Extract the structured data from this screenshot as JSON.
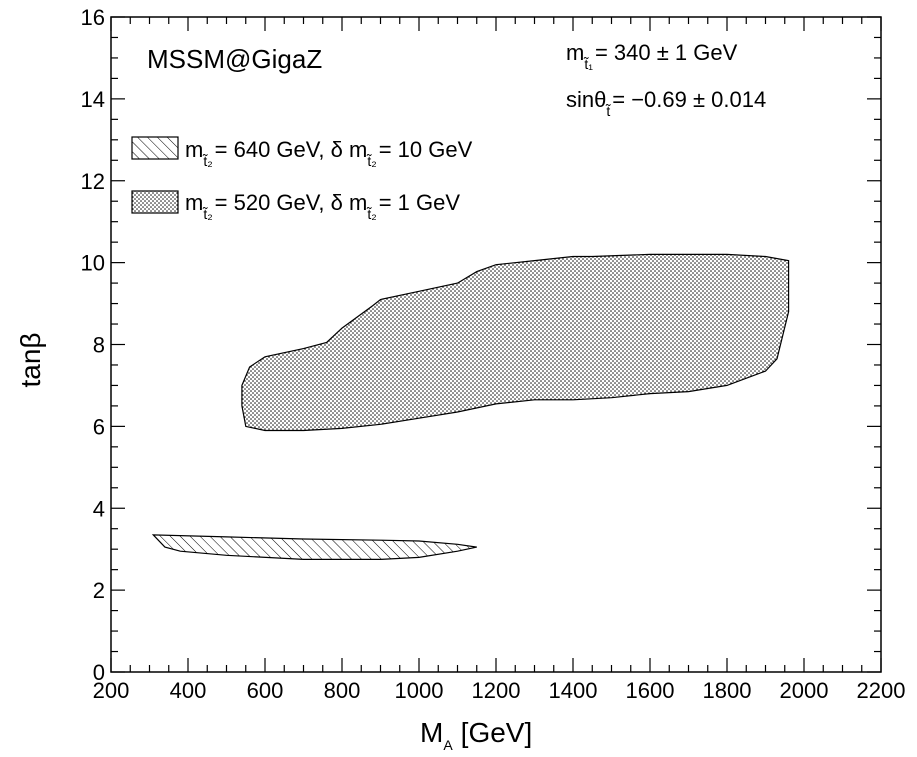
{
  "chart_data": {
    "type": "area",
    "title": "",
    "xlabel": "M",
    "xlabel_sub": "A",
    "xlabel_unit": "[GeV]",
    "ylabel": "tanβ",
    "xlim": [
      200,
      2200
    ],
    "ylim": [
      0,
      16
    ],
    "x_ticks": [
      200,
      400,
      600,
      800,
      1000,
      1200,
      1400,
      1600,
      1800,
      2000,
      2200
    ],
    "y_ticks": [
      0,
      2,
      4,
      6,
      8,
      10,
      12,
      14,
      16
    ],
    "x_tick_labels": [
      "200",
      "400",
      "600",
      "800",
      "1000",
      "1200",
      "1400",
      "1600",
      "1800",
      "2000",
      "2200"
    ],
    "y_tick_labels": [
      "0",
      "2",
      "4",
      "6",
      "8",
      "10",
      "12",
      "14",
      "16"
    ],
    "grid": false,
    "legend_position": "top-left",
    "annotations": {
      "scenario": "MSSM@GigaZ",
      "line1": {
        "pre": "m",
        "sub": "t̃₁",
        "post": "= 340 ± 1 GeV"
      },
      "line2": {
        "pre": "sinθ",
        "sub": "t̃",
        "post": "= −0.69 ± 0.014"
      }
    },
    "series": [
      {
        "pattern": "hatched",
        "legend": {
          "pre": "m",
          "sub": "t̃₂",
          "mid": "= 640 GeV, δ m",
          "sub2": "t̃₂",
          "post": "= 10 GeV"
        },
        "x": [
          310,
          340,
          380,
          500,
          700,
          900,
          1000,
          1100,
          1150,
          1150,
          1100,
          1000,
          900,
          700,
          500,
          310
        ],
        "y": [
          3.35,
          3.05,
          2.95,
          2.85,
          2.75,
          2.75,
          2.8,
          2.95,
          3.05,
          3.05,
          3.12,
          3.2,
          3.22,
          3.25,
          3.3,
          3.35
        ]
      },
      {
        "pattern": "dotted",
        "legend": {
          "pre": "m",
          "sub": "t̃₂",
          "mid": "= 520 GeV, δ m",
          "sub2": "t̃₂",
          "post": "= 1 GeV"
        },
        "x": [
          540,
          550,
          600,
          700,
          800,
          900,
          1000,
          1100,
          1200,
          1300,
          1400,
          1500,
          1600,
          1700,
          1800,
          1900,
          1930,
          1960,
          1960,
          1900,
          1800,
          1700,
          1600,
          1450,
          1400,
          1300,
          1200,
          1150,
          1100,
          1000,
          900,
          880,
          800,
          760,
          700,
          600,
          560,
          540
        ],
        "y": [
          6.5,
          6.0,
          5.9,
          5.9,
          5.95,
          6.05,
          6.2,
          6.35,
          6.55,
          6.65,
          6.65,
          6.7,
          6.8,
          6.85,
          7.0,
          7.35,
          7.65,
          8.8,
          10.05,
          10.15,
          10.2,
          10.2,
          10.2,
          10.15,
          10.15,
          10.05,
          9.95,
          9.78,
          9.5,
          9.3,
          9.1,
          8.95,
          8.4,
          8.05,
          7.9,
          7.7,
          7.45,
          7.0
        ]
      }
    ]
  }
}
